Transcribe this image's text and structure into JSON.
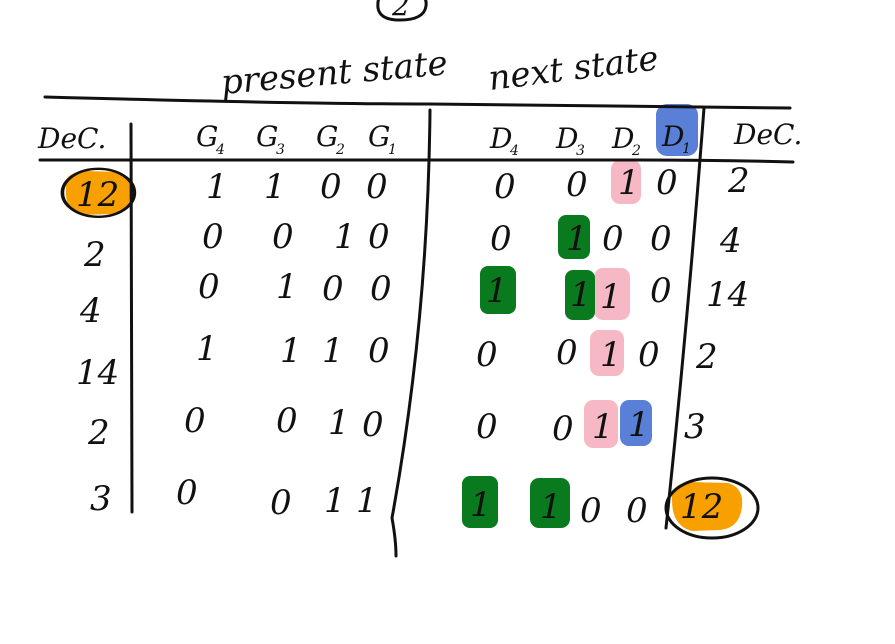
{
  "colors": {
    "ink": "#111111",
    "orange": "#f7a000",
    "green": "#0a7a1f",
    "pink": "#f6b8c4",
    "blue": "#5a7fd6"
  },
  "page": {
    "circled_number": "2"
  },
  "headings": {
    "present_state": "present state",
    "next_state": "next state"
  },
  "columns": {
    "dec_left": "DeC.",
    "g4": "G",
    "g4_sub": "4",
    "g3": "G",
    "g3_sub": "3",
    "g2": "G",
    "g2_sub": "2",
    "g1": "G",
    "g1_sub": "1",
    "d4": "D",
    "d4_sub": "4",
    "d3": "D",
    "d3_sub": "3",
    "d2": "D",
    "d2_sub": "2",
    "d1": "D",
    "d1_sub": "1",
    "dec_right": "DeC."
  },
  "rows": [
    {
      "dec": "12",
      "g4": "1",
      "g3": "1",
      "g2": "0",
      "g1": "0",
      "d4": "0",
      "d3": "0",
      "d2": "1",
      "d1": "0",
      "next_dec": "2"
    },
    {
      "dec": "2",
      "g4": "0",
      "g3": "0",
      "g2": "1",
      "g1": "0",
      "d4": "0",
      "d3": "1",
      "d2": "0",
      "d1": "0",
      "next_dec": "4"
    },
    {
      "dec": "4",
      "g4": "0",
      "g3": "1",
      "g2": "0",
      "g1": "0",
      "d4": "1",
      "d3": "1",
      "d2": "1",
      "d1": "0",
      "next_dec": "14"
    },
    {
      "dec": "14",
      "g4": "1",
      "g3": "1",
      "g2": "1",
      "g1": "0",
      "d4": "0",
      "d3": "0",
      "d2": "1",
      "d1": "0",
      "next_dec": "2"
    },
    {
      "dec": "2",
      "g4": "0",
      "g3": "0",
      "g2": "1",
      "g1": "0",
      "d4": "0",
      "d3": "0",
      "d2": "1",
      "d1": "1",
      "next_dec": "3"
    },
    {
      "dec": "3",
      "g4": "0",
      "g3": "0",
      "g2": "1",
      "g1": "1",
      "d4": "1",
      "d3": "1",
      "d2": "0",
      "d1": "0",
      "next_dec": "12"
    }
  ]
}
